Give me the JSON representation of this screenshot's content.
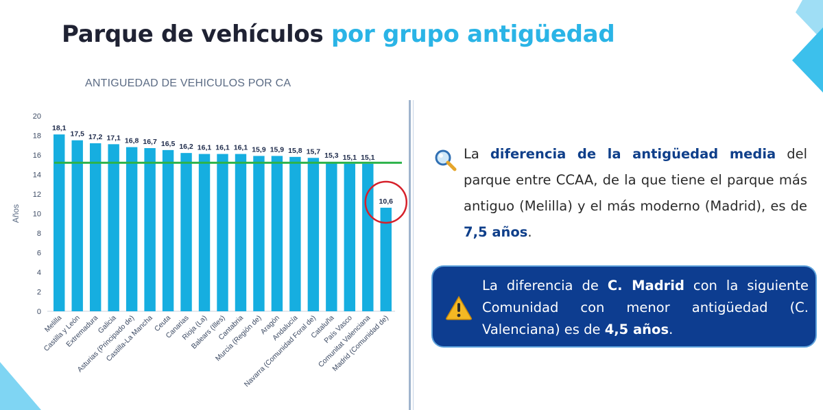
{
  "slide": {
    "title_part1": "Parque de vehículos",
    "title_part2": "por grupo antigüedad"
  },
  "colors": {
    "title_dark": "#1f2233",
    "title_accent": "#2ab4e6",
    "bar": "#16aee0",
    "reference_line": "#2db34a",
    "highlight_circle": "#d6202a",
    "callout_bg": "#0d3d90",
    "emphasis_text": "#0f3f8a"
  },
  "chart_data": {
    "type": "bar",
    "title": "ANTIGUEDAD DE VEHICULOS POR CA",
    "ylabel": "Años",
    "xlabel": "",
    "ylim": [
      0,
      20
    ],
    "yticks": [
      0,
      2,
      4,
      6,
      8,
      10,
      12,
      14,
      16,
      18,
      20
    ],
    "grid": false,
    "categories": [
      "Melilla",
      "Castilla y León",
      "Extremadura",
      "Galicia",
      "Asturias (Principado de)",
      "Castilla-La Mancha",
      "Ceuta",
      "Canarias",
      "Rioja (La)",
      "Balears (Illes)",
      "Cantabria",
      "Murcia (Región de)",
      "Aragón",
      "Andalucía",
      "Navarra (Comunidad Foral de)",
      "Cataluña",
      "País Vasco",
      "Comunitat Valenciana",
      "Madrid (Comunidad de)"
    ],
    "values": [
      18.1,
      17.5,
      17.2,
      17.1,
      16.8,
      16.7,
      16.5,
      16.2,
      16.1,
      16.1,
      16.1,
      15.9,
      15.9,
      15.8,
      15.7,
      15.3,
      15.1,
      15.1,
      10.6
    ],
    "value_labels": [
      "18,1",
      "17,5",
      "17,2",
      "17,1",
      "16,8",
      "16,7",
      "16,5",
      "16,2",
      "16,1",
      "16,1",
      "16,1",
      "15,9",
      "15,9",
      "15,8",
      "15,7",
      "15,3",
      "15,1",
      "15,1",
      "10,6"
    ],
    "reference_line_value": 15.2,
    "highlighted_category": "Madrid (Comunidad de)"
  },
  "point1": {
    "icon": "magnifier-icon",
    "text_a": "La ",
    "text_b": "diferencia de la antigüedad media",
    "text_c": " del parque entre CCAA, de la que tiene el parque más antiguo (Melilla) y el más moderno (Madrid), es de ",
    "text_d": "7,5 años",
    "text_e": "."
  },
  "callout": {
    "icon": "warning-icon",
    "text_a": "La diferencia de ",
    "text_b": "C. Madrid",
    "text_c": " con la siguiente Comunidad con menor antigüedad (C. Valenciana) es de ",
    "text_d": "4,5 años",
    "text_e": "."
  }
}
